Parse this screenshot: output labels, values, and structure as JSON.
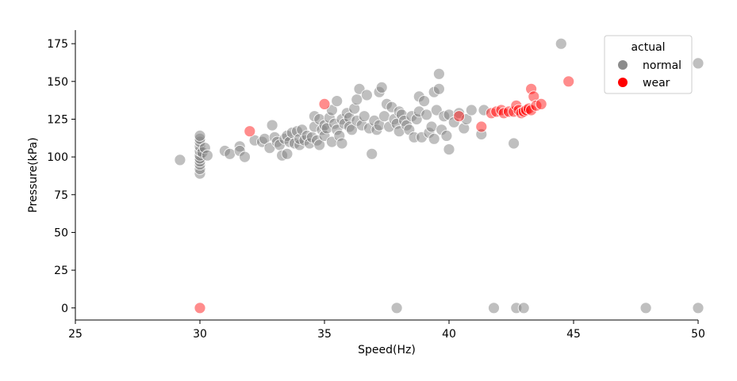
{
  "chart_data": {
    "type": "scatter",
    "xlabel": "Speed(Hz)",
    "ylabel": "Pressure(kPa)",
    "xlim": [
      25,
      50
    ],
    "ylim": [
      -8,
      184
    ],
    "xticks": [
      25,
      30,
      35,
      40,
      45,
      50
    ],
    "yticks": [
      0,
      25,
      50,
      75,
      100,
      125,
      150,
      175
    ],
    "grid": false,
    "legend": {
      "title": "actual",
      "placement": "top-right"
    },
    "series": [
      {
        "name": "normal",
        "color": "#808080",
        "points": [
          [
            29.2,
            98
          ],
          [
            30,
            89
          ],
          [
            30,
            92
          ],
          [
            30,
            95
          ],
          [
            30,
            97
          ],
          [
            30,
            99
          ],
          [
            30,
            101
          ],
          [
            30,
            104
          ],
          [
            30,
            107
          ],
          [
            30,
            110
          ],
          [
            30,
            112
          ],
          [
            30,
            114
          ],
          [
            30.1,
            103
          ],
          [
            30.2,
            106
          ],
          [
            30.3,
            101
          ],
          [
            31.0,
            104
          ],
          [
            31.2,
            102
          ],
          [
            31.6,
            107
          ],
          [
            31.6,
            104
          ],
          [
            31.8,
            100
          ],
          [
            32.2,
            111
          ],
          [
            32.5,
            110
          ],
          [
            32.6,
            112
          ],
          [
            32.8,
            106
          ],
          [
            32.9,
            121
          ],
          [
            33.0,
            113
          ],
          [
            33.1,
            110
          ],
          [
            33.2,
            108
          ],
          [
            33.3,
            101
          ],
          [
            33.4,
            112
          ],
          [
            33.5,
            114
          ],
          [
            33.5,
            102
          ],
          [
            33.6,
            110
          ],
          [
            33.7,
            116
          ],
          [
            33.8,
            109
          ],
          [
            33.9,
            117
          ],
          [
            34.0,
            108
          ],
          [
            34.0,
            112
          ],
          [
            34.1,
            118
          ],
          [
            34.2,
            111
          ],
          [
            34.3,
            114
          ],
          [
            34.4,
            109
          ],
          [
            34.5,
            113
          ],
          [
            34.6,
            120
          ],
          [
            34.6,
            127
          ],
          [
            34.7,
            111
          ],
          [
            34.8,
            108
          ],
          [
            34.8,
            125
          ],
          [
            34.9,
            118
          ],
          [
            35.0,
            114
          ],
          [
            35.0,
            121
          ],
          [
            35.1,
            119
          ],
          [
            35.2,
            126
          ],
          [
            35.3,
            110
          ],
          [
            35.3,
            131
          ],
          [
            35.4,
            122
          ],
          [
            35.5,
            118
          ],
          [
            35.5,
            137
          ],
          [
            35.6,
            114
          ],
          [
            35.7,
            109
          ],
          [
            35.7,
            125
          ],
          [
            35.8,
            122
          ],
          [
            35.9,
            129
          ],
          [
            36.0,
            126
          ],
          [
            36.0,
            120
          ],
          [
            36.1,
            118
          ],
          [
            36.2,
            132
          ],
          [
            36.3,
            138
          ],
          [
            36.3,
            124
          ],
          [
            36.4,
            145
          ],
          [
            36.5,
            121
          ],
          [
            36.6,
            127
          ],
          [
            36.7,
            141
          ],
          [
            36.8,
            119
          ],
          [
            36.9,
            102
          ],
          [
            37.0,
            124
          ],
          [
            37.1,
            118
          ],
          [
            37.2,
            143
          ],
          [
            37.2,
            121
          ],
          [
            37.3,
            146
          ],
          [
            37.4,
            127
          ],
          [
            37.5,
            135
          ],
          [
            37.6,
            120
          ],
          [
            37.7,
            133
          ],
          [
            37.8,
            125
          ],
          [
            37.9,
            122
          ],
          [
            38.0,
            130
          ],
          [
            38.0,
            117
          ],
          [
            38.1,
            128
          ],
          [
            38.2,
            124
          ],
          [
            38.3,
            121
          ],
          [
            38.4,
            118
          ],
          [
            38.5,
            127
          ],
          [
            38.6,
            113
          ],
          [
            38.7,
            125
          ],
          [
            38.8,
            130
          ],
          [
            38.8,
            140
          ],
          [
            38.9,
            113
          ],
          [
            39.0,
            137
          ],
          [
            39.1,
            128
          ],
          [
            39.2,
            116
          ],
          [
            39.3,
            120
          ],
          [
            39.4,
            112
          ],
          [
            39.4,
            143
          ],
          [
            39.5,
            131
          ],
          [
            39.6,
            145
          ],
          [
            39.6,
            155
          ],
          [
            39.7,
            118
          ],
          [
            39.8,
            127
          ],
          [
            39.9,
            114
          ],
          [
            40.0,
            128
          ],
          [
            40.0,
            105
          ],
          [
            40.2,
            123
          ],
          [
            40.4,
            129
          ],
          [
            40.6,
            119
          ],
          [
            40.7,
            125
          ],
          [
            40.9,
            131
          ],
          [
            41.3,
            115
          ],
          [
            41.4,
            131
          ],
          [
            42.6,
            109
          ],
          [
            44.5,
            175
          ],
          [
            50.0,
            162
          ],
          [
            37.9,
            0
          ],
          [
            41.8,
            0
          ],
          [
            42.7,
            0
          ],
          [
            43.0,
            0
          ],
          [
            47.9,
            0
          ],
          [
            50.0,
            0
          ]
        ]
      },
      {
        "name": "wear",
        "color": "#ff0000",
        "points": [
          [
            30.0,
            0
          ],
          [
            32.0,
            117
          ],
          [
            35.0,
            135
          ],
          [
            40.4,
            127
          ],
          [
            41.3,
            120
          ],
          [
            41.7,
            129
          ],
          [
            41.9,
            130
          ],
          [
            42.1,
            131
          ],
          [
            42.2,
            129
          ],
          [
            42.4,
            130
          ],
          [
            42.6,
            130
          ],
          [
            42.7,
            134
          ],
          [
            42.8,
            131
          ],
          [
            42.9,
            129
          ],
          [
            43.0,
            130
          ],
          [
            43.1,
            131
          ],
          [
            43.2,
            132
          ],
          [
            43.3,
            131
          ],
          [
            43.3,
            145
          ],
          [
            43.4,
            140
          ],
          [
            43.5,
            134
          ],
          [
            43.7,
            135
          ],
          [
            44.8,
            150
          ]
        ]
      }
    ]
  }
}
